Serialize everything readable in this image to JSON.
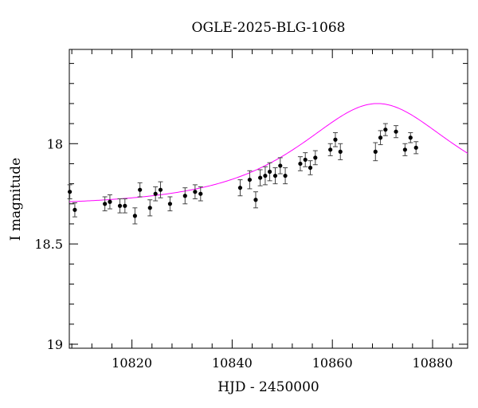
{
  "chart_data": {
    "type": "scatter",
    "title": "OGLE-2025-BLG-1068",
    "xlabel": "HJD - 2450000",
    "ylabel": "I magnitude",
    "xlim": [
      10807.5,
      10887
    ],
    "ylim": [
      19.02,
      17.53
    ],
    "y_inverted": true,
    "grid": false,
    "legend": "none",
    "x_major_ticks": [
      10820,
      10840,
      10860,
      10880
    ],
    "x_tick_labels": [
      "10820",
      "10840",
      "10860",
      "10880"
    ],
    "x_minor_step": 4,
    "y_major_ticks": [
      18,
      18.5,
      19
    ],
    "y_tick_labels": [
      "18",
      "18.5",
      "19"
    ],
    "y_minor_step": 0.1,
    "colors": {
      "data": "#000000",
      "model": "#ff00ff"
    },
    "series": [
      {
        "kind": "points_with_errorbars",
        "x": [
          10807.6,
          10808.6,
          10814.6,
          10815.6,
          10817.6,
          10818.6,
          10820.6,
          10821.6,
          10823.6,
          10824.7,
          10825.7,
          10827.6,
          10830.6,
          10832.6,
          10833.7,
          10841.6,
          10843.5,
          10844.7,
          10845.6,
          10846.6,
          10847.5,
          10848.6,
          10849.6,
          10850.6,
          10853.6,
          10854.6,
          10855.6,
          10856.6,
          10859.6,
          10860.6,
          10861.6,
          10868.6,
          10869.6,
          10870.6,
          10872.7,
          10874.5,
          10875.6,
          10876.7
        ],
        "y": [
          18.24,
          18.33,
          18.3,
          18.29,
          18.31,
          18.31,
          18.36,
          18.23,
          18.32,
          18.25,
          18.23,
          18.3,
          18.26,
          18.24,
          18.25,
          18.22,
          18.18,
          18.28,
          18.17,
          18.16,
          18.14,
          18.16,
          18.11,
          18.16,
          18.1,
          18.08,
          18.12,
          18.07,
          18.03,
          17.98,
          18.04,
          18.04,
          17.97,
          17.93,
          17.94,
          18.03,
          17.97,
          18.02
        ],
        "yerr": [
          0.035,
          0.035,
          0.035,
          0.035,
          0.035,
          0.035,
          0.04,
          0.035,
          0.04,
          0.035,
          0.04,
          0.035,
          0.04,
          0.035,
          0.035,
          0.04,
          0.045,
          0.04,
          0.04,
          0.045,
          0.045,
          0.04,
          0.04,
          0.04,
          0.035,
          0.035,
          0.035,
          0.035,
          0.03,
          0.035,
          0.04,
          0.045,
          0.035,
          0.03,
          0.03,
          0.03,
          0.025,
          0.03
        ]
      },
      {
        "kind": "model_curve",
        "baseline_mag": 18.31,
        "peak_time": 10869,
        "u0": 0.75,
        "tE": 22,
        "x_range": [
          10807.5,
          10887
        ]
      }
    ]
  }
}
